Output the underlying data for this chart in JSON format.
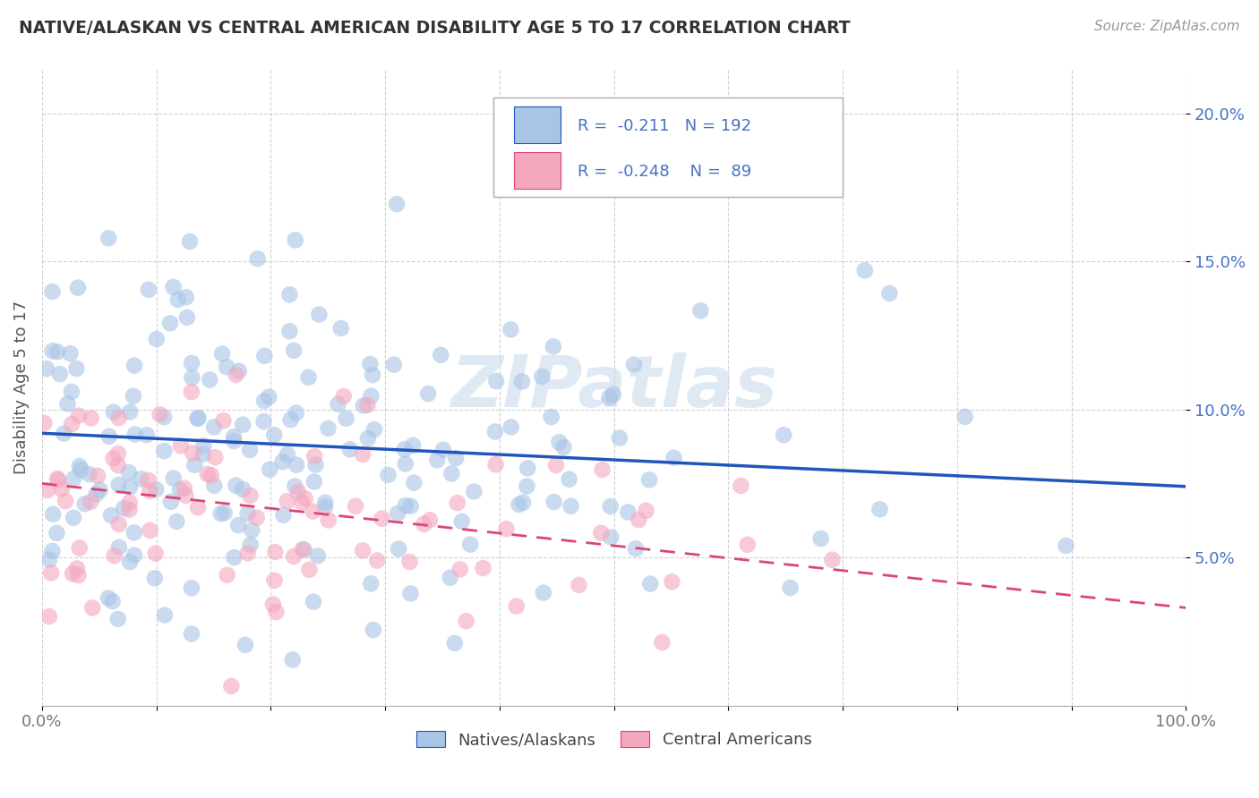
{
  "title": "NATIVE/ALASKAN VS CENTRAL AMERICAN DISABILITY AGE 5 TO 17 CORRELATION CHART",
  "source": "Source: ZipAtlas.com",
  "ylabel": "Disability Age 5 to 17",
  "watermark": "ZIPatlas",
  "legend_labels": [
    "Natives/Alaskans",
    "Central Americans"
  ],
  "legend_R": [
    -0.211,
    -0.248
  ],
  "legend_N": [
    192,
    89
  ],
  "blue_color": "#a8c4e6",
  "pink_color": "#f4a8be",
  "line_blue": "#2255bb",
  "line_pink": "#dd4477",
  "title_color": "#333333",
  "legend_text_color": "#4472c4",
  "background_color": "#ffffff",
  "xlim": [
    0.0,
    1.0
  ],
  "ylim": [
    0.0,
    0.215
  ],
  "yticks": [
    0.05,
    0.1,
    0.15,
    0.2
  ],
  "ytick_labels": [
    "5.0%",
    "10.0%",
    "15.0%",
    "20.0%"
  ],
  "blue_line_x0": 0.0,
  "blue_line_x1": 1.0,
  "blue_line_y0": 0.092,
  "blue_line_y1": 0.074,
  "pink_line_x0": 0.0,
  "pink_line_x1": 1.0,
  "pink_line_y0": 0.075,
  "pink_line_y1": 0.033
}
